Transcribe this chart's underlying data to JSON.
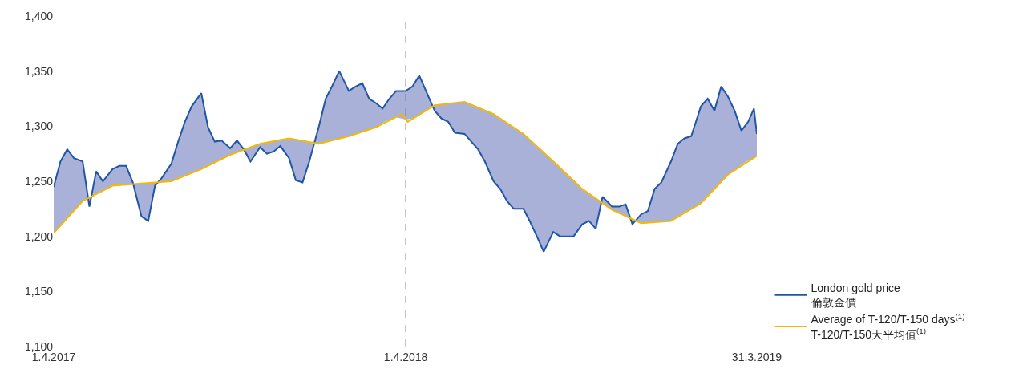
{
  "chart_data": {
    "type": "line",
    "xlim": [
      "2017-04-01",
      "2019-03-31"
    ],
    "xticks": [
      {
        "value": "2017-04-01",
        "label": "1.4.2017"
      },
      {
        "value": "2018-04-01",
        "label": "1.4.2018"
      },
      {
        "value": "2019-03-31",
        "label": "31.3.2019"
      }
    ],
    "ylim": [
      1100,
      1400
    ],
    "yticks": [
      {
        "value": 1100,
        "label": "1,100"
      },
      {
        "value": 1150,
        "label": "1,150"
      },
      {
        "value": 1200,
        "label": "1,200"
      },
      {
        "value": 1250,
        "label": "1,250"
      },
      {
        "value": 1300,
        "label": "1,300"
      },
      {
        "value": 1350,
        "label": "1,350"
      },
      {
        "value": 1400,
        "label": "1,400"
      }
    ],
    "grid": false,
    "legend": "bottom right",
    "marker": "none",
    "line_style": "solid",
    "ref_lines": [
      {
        "axis": "x",
        "value": "2018-04-01",
        "color": "#707070",
        "line_style": "dashed"
      }
    ],
    "series": [
      {
        "name": "London gold price\n倫敦金價",
        "color": "#1f56a5",
        "lower": [
          1203,
          1210,
          1217,
          1223,
          1232,
          1235,
          1239,
          1242,
          1246,
          1246,
          1247,
          1247,
          1248,
          1248,
          1249,
          1249,
          1250,
          1253,
          1255,
          1258,
          1261,
          1264,
          1267,
          1270,
          1274,
          1276,
          1279,
          1281,
          1284,
          1285,
          1286,
          1288,
          1289,
          1288,
          1287,
          1285,
          1284,
          1286,
          1287,
          1289,
          1291,
          1293,
          1295,
          1297,
          1299,
          1303,
          1306,
          1308,
          1306,
          1307,
          1310,
          1314,
          1319,
          1320,
          1320,
          1321,
          1322,
          1319,
          1317,
          1314,
          1311,
          1307,
          1303,
          1298,
          1293,
          1287,
          1281,
          1276,
          1268,
          1262,
          1256,
          1251,
          1243,
          1239,
          1234,
          1230,
          1224,
          1221,
          1218,
          1216,
          1212,
          1212,
          1213,
          1213,
          1214,
          1218,
          1222,
          1225,
          1230,
          1237,
          1243,
          1250,
          1256,
          1260,
          1265,
          1269,
          1271,
          1273
        ],
        "upper": [
          1245,
          1268,
          1279,
          1271,
          1268,
          1227,
          1259,
          1250,
          1261,
          1264,
          1264,
          1249,
          1218,
          1214,
          1246,
          1253,
          1266,
          1286,
          1304,
          1318,
          1330,
          1299,
          1286,
          1287,
          1280,
          1287,
          1279,
          1268,
          1281,
          1275,
          1277,
          1282,
          1271,
          1251,
          1249,
          1268,
          1300,
          1325,
          1337,
          1350,
          1332,
          1336,
          1339,
          1325,
          1321,
          1316,
          1325,
          1332,
          1332,
          1336,
          1346,
          1332,
          1314,
          1307,
          1304,
          1294,
          1293,
          1286,
          1279,
          1268,
          1250,
          1243,
          1232,
          1225,
          1225,
          1213,
          1200,
          1186,
          1204,
          1200,
          1200,
          1200,
          1211,
          1214,
          1207,
          1236,
          1227,
          1227,
          1229,
          1211,
          1220,
          1223,
          1243,
          1249,
          1268,
          1284,
          1289,
          1291,
          1318,
          1325,
          1314,
          1336,
          1327,
          1314,
          1296,
          1304,
          1316,
          1293
        ],
        "x": [
          "2017-04-01",
          "2017-04-08",
          "2017-04-15",
          "2017-04-22",
          "2017-05-01",
          "2017-05-08",
          "2017-05-15",
          "2017-05-22",
          "2017-06-01",
          "2017-06-08",
          "2017-06-15",
          "2017-06-22",
          "2017-07-01",
          "2017-07-08",
          "2017-07-15",
          "2017-07-22",
          "2017-08-01",
          "2017-08-08",
          "2017-08-15",
          "2017-08-22",
          "2017-09-01",
          "2017-09-08",
          "2017-09-15",
          "2017-09-22",
          "2017-10-01",
          "2017-10-08",
          "2017-10-15",
          "2017-10-22",
          "2017-11-01",
          "2017-11-08",
          "2017-11-15",
          "2017-11-22",
          "2017-12-01",
          "2017-12-08",
          "2017-12-15",
          "2017-12-22",
          "2018-01-01",
          "2018-01-08",
          "2018-01-15",
          "2018-01-22",
          "2018-02-01",
          "2018-02-08",
          "2018-02-15",
          "2018-02-22",
          "2018-03-01",
          "2018-03-08",
          "2018-03-15",
          "2018-03-22",
          "2018-04-01",
          "2018-04-08",
          "2018-04-15",
          "2018-04-22",
          "2018-05-01",
          "2018-05-08",
          "2018-05-15",
          "2018-05-22",
          "2018-06-01",
          "2018-06-08",
          "2018-06-15",
          "2018-06-22",
          "2018-07-01",
          "2018-07-08",
          "2018-07-15",
          "2018-07-22",
          "2018-08-01",
          "2018-08-08",
          "2018-08-15",
          "2018-08-22",
          "2018-09-01",
          "2018-09-08",
          "2018-09-15",
          "2018-09-22",
          "2018-10-01",
          "2018-10-08",
          "2018-10-15",
          "2018-10-22",
          "2018-11-01",
          "2018-11-08",
          "2018-11-15",
          "2018-11-22",
          "2018-12-01",
          "2018-12-08",
          "2018-12-15",
          "2018-12-22",
          "2019-01-01",
          "2019-01-08",
          "2019-01-15",
          "2019-01-22",
          "2019-02-01",
          "2019-02-08",
          "2019-02-15",
          "2019-02-22",
          "2019-03-01",
          "2019-03-08",
          "2019-03-15",
          "2019-03-22",
          "2019-03-28",
          "2019-03-31"
        ],
        "values": [
          1245,
          1268,
          1279,
          1271,
          1268,
          1227,
          1259,
          1250,
          1261,
          1264,
          1264,
          1249,
          1218,
          1214,
          1246,
          1253,
          1266,
          1286,
          1304,
          1318,
          1330,
          1299,
          1286,
          1287,
          1280,
          1287,
          1279,
          1268,
          1281,
          1275,
          1277,
          1282,
          1271,
          1251,
          1249,
          1268,
          1300,
          1325,
          1337,
          1350,
          1332,
          1336,
          1339,
          1325,
          1321,
          1316,
          1325,
          1332,
          1332,
          1336,
          1346,
          1332,
          1314,
          1307,
          1304,
          1294,
          1293,
          1286,
          1279,
          1268,
          1250,
          1243,
          1232,
          1225,
          1225,
          1213,
          1200,
          1186,
          1204,
          1200,
          1200,
          1200,
          1211,
          1214,
          1207,
          1236,
          1227,
          1227,
          1229,
          1211,
          1220,
          1223,
          1243,
          1249,
          1268,
          1284,
          1289,
          1291,
          1318,
          1325,
          1314,
          1336,
          1327,
          1314,
          1296,
          1304,
          1316,
          1293
        ]
      },
      {
        "name": "Average of T-120/T-150 days$^{(1)}$\nT-120/T-150天平均值$^{(1)}$",
        "color": "#f5b800",
        "x": [
          "2017-04-01",
          "2017-05-01",
          "2017-06-01",
          "2017-07-01",
          "2017-08-01",
          "2017-09-01",
          "2017-10-01",
          "2017-11-01",
          "2017-12-01",
          "2018-01-01",
          "2018-02-01",
          "2018-03-01",
          "2018-03-28",
          "2018-04-03",
          "2018-05-01",
          "2018-06-01",
          "2018-07-01",
          "2018-08-01",
          "2018-09-01",
          "2018-10-01",
          "2018-11-01",
          "2018-12-01",
          "2019-01-01",
          "2019-02-01",
          "2019-03-01",
          "2019-03-31"
        ],
        "values": [
          1203,
          1232,
          1246,
          1248,
          1250,
          1261,
          1274,
          1284,
          1289,
          1284,
          1291,
          1299,
          1311,
          1304,
          1319,
          1322,
          1311,
          1293,
          1268,
          1243,
          1224,
          1212,
          1214,
          1230,
          1256,
          1273
        ]
      }
    ]
  }
}
